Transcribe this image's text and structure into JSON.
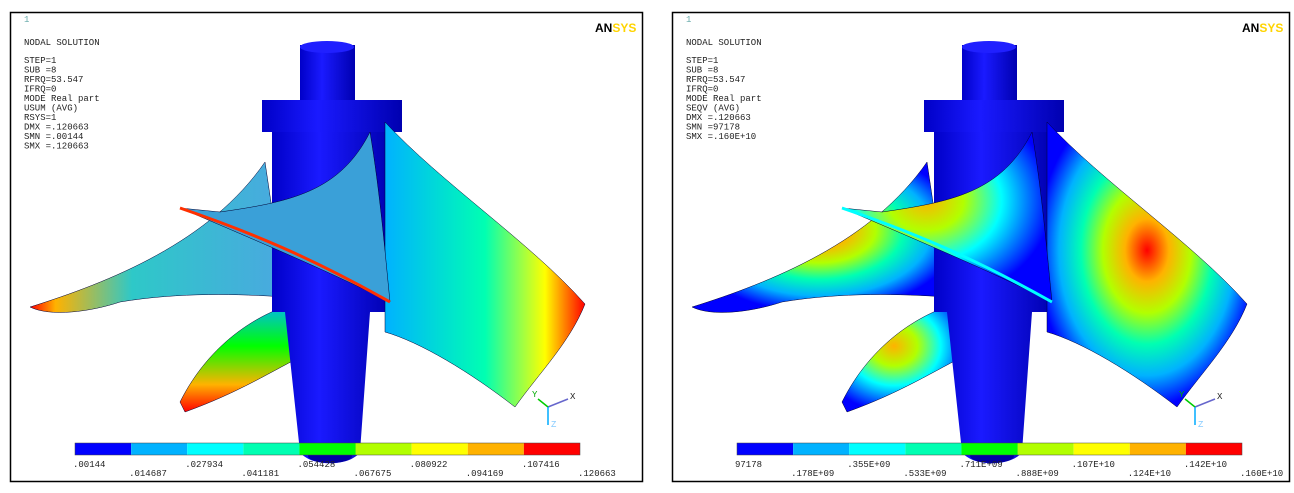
{
  "panels": [
    {
      "frame_number": "1",
      "heading": "NODAL SOLUTION",
      "lines": [
        "STEP=1",
        "SUB =8",
        "RFRQ=53.547",
        "IFRQ=0",
        "MODE Real part",
        "USUM     (AVG)",
        "RSYS=1",
        "DMX =.120663",
        "SMN =.00144",
        "SMX =.120663"
      ],
      "logo": "AN",
      "logo_accent": "SYS",
      "legend": {
        "colors": [
          "#0000ff",
          "#00b2ff",
          "#00ffff",
          "#00ffb2",
          "#00ff00",
          "#b2ff00",
          "#ffff00",
          "#ffb200",
          "#ff0000"
        ],
        "labels": [
          ".00144",
          ".014687",
          ".027934",
          ".041181",
          ".054428",
          ".067675",
          ".080922",
          ".094169",
          ".107416",
          ".120663"
        ]
      },
      "triad": {
        "x": "X",
        "y": "Y",
        "z": "Z"
      }
    },
    {
      "frame_number": "1",
      "heading": "NODAL SOLUTION",
      "lines": [
        "STEP=1",
        "SUB =8",
        "RFRQ=53.547",
        "IFRQ=0",
        "MODE Real part",
        "SEQV     (AVG)",
        "DMX =.120663",
        "SMN =97178",
        "SMX =.160E+10"
      ],
      "logo": "AN",
      "logo_accent": "SYS",
      "legend": {
        "colors": [
          "#0000ff",
          "#00b2ff",
          "#00ffff",
          "#00ffb2",
          "#00ff00",
          "#b2ff00",
          "#ffff00",
          "#ffb200",
          "#ff0000"
        ],
        "labels": [
          "97178",
          ".178E+09",
          ".355E+09",
          ".533E+09",
          ".711E+09",
          ".888E+09",
          ".107E+10",
          ".124E+10",
          ".142E+10",
          ".160E+10"
        ]
      },
      "triad": {
        "x": "X",
        "y": "Y",
        "z": "Z"
      }
    }
  ]
}
